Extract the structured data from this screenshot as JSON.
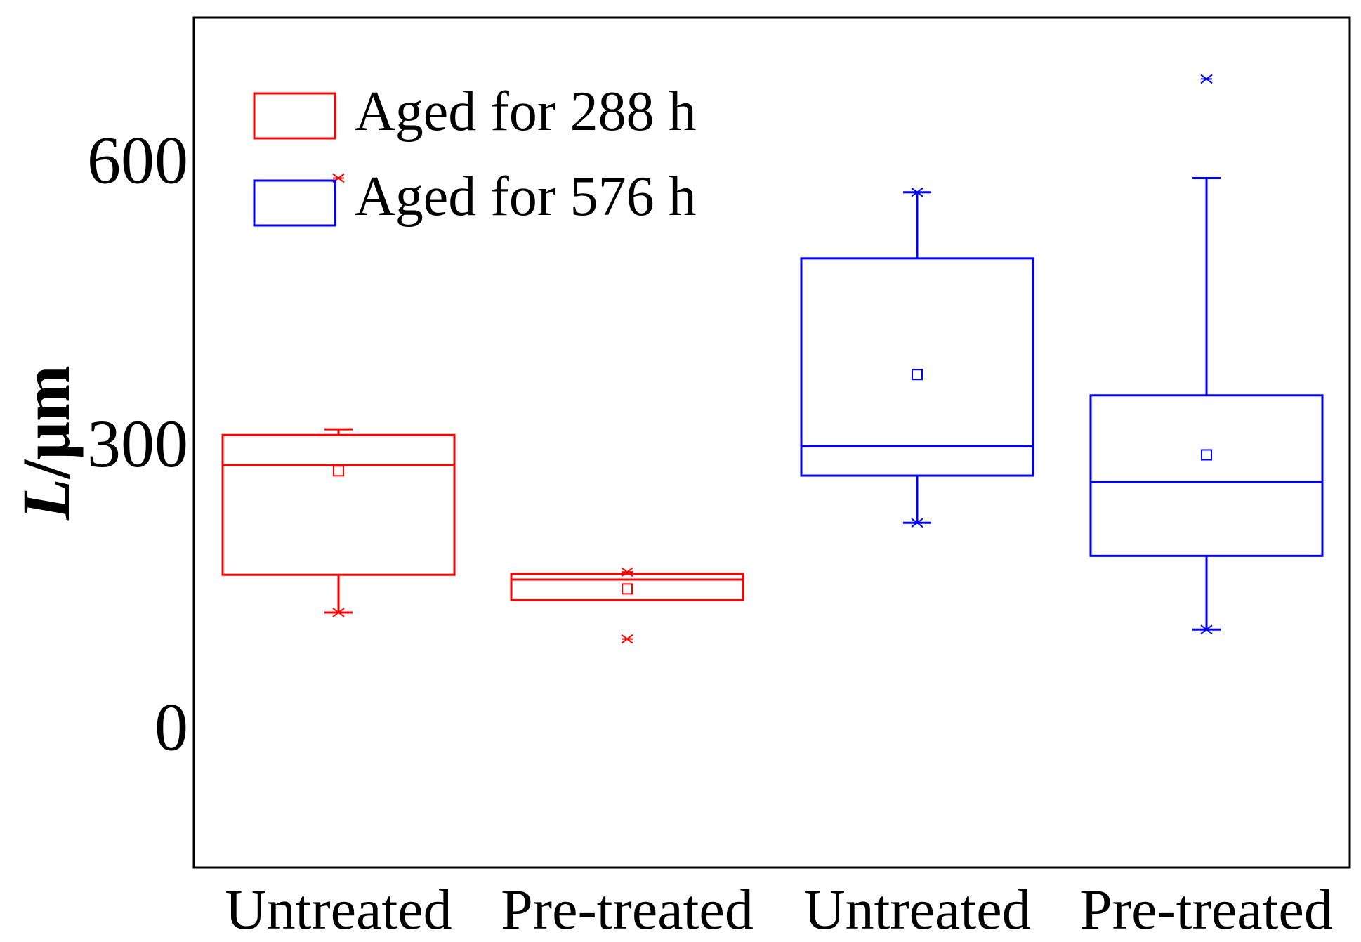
{
  "chart_data": {
    "type": "box",
    "title": "",
    "xlabel": "",
    "ylabel": {
      "italic": "L",
      "rest": "/μm"
    },
    "ylim": [
      -150,
      750
    ],
    "yticks": [
      0,
      300,
      600
    ],
    "ytick_labels": [
      "0",
      "300",
      "600"
    ],
    "categories": [
      "Untreated",
      "Pre-treated",
      "Untreated",
      "Pre-treated"
    ],
    "legend": {
      "placement": "top-left",
      "entries": [
        {
          "label": "Aged for 288 h",
          "color": "#ff0000"
        },
        {
          "label": "Aged for 576 h",
          "color": "#0000ff"
        }
      ]
    },
    "boxes": [
      {
        "category": "Untreated",
        "series": "Aged for 288 h",
        "color": "#ff0000",
        "whisker_low": 120,
        "q1": 160,
        "median": 276,
        "q3": 308,
        "whisker_high": 314,
        "mean": 270,
        "min_marker": 120,
        "max_marker": 580,
        "outliers": []
      },
      {
        "category": "Pre-treated",
        "series": "Aged for 288 h",
        "color": "#ff0000",
        "whisker_low": 133,
        "q1": 133,
        "median": 155,
        "q3": 161,
        "whisker_high": 161,
        "mean": 145,
        "min_marker": 92,
        "max_marker": 163,
        "outliers": []
      },
      {
        "category": "Untreated",
        "series": "Aged for 576 h",
        "color": "#0000ff",
        "whisker_low": 215,
        "q1": 265,
        "median": 296,
        "q3": 495,
        "whisker_high": 565,
        "mean": 372,
        "min_marker": 215,
        "max_marker": 565,
        "outliers": []
      },
      {
        "category": "Pre-treated",
        "series": "Aged for 576 h",
        "color": "#0000ff",
        "whisker_low": 102,
        "q1": 180,
        "median": 258,
        "q3": 350,
        "whisker_high": 580,
        "mean": 287,
        "min_marker": 102,
        "max_marker": 685,
        "outliers": []
      }
    ]
  }
}
